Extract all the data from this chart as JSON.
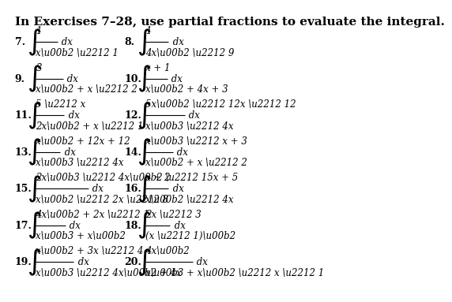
{
  "title": "In Exercises 7–28, use partial fractions to evaluate the integral.",
  "title_fontsize": 11,
  "title_bold": true,
  "exercises": [
    {
      "num": "7.",
      "col": 0,
      "row": 0,
      "numerator": "1",
      "denominator": "x\\u00b2 \\u2212 1",
      "suffix": " dx"
    },
    {
      "num": "8.",
      "col": 1,
      "row": 0,
      "numerator": "1",
      "denominator": "4x\\u00b2 \\u2212 9",
      "suffix": " dx"
    },
    {
      "num": "9.",
      "col": 0,
      "row": 1,
      "numerator": "3",
      "denominator": "x\\u00b2 + x \\u2212 2",
      "suffix": " dx"
    },
    {
      "num": "10.",
      "col": 1,
      "row": 1,
      "numerator": "x + 1",
      "denominator": "x\\u00b2 + 4x + 3",
      "suffix": " dx"
    },
    {
      "num": "11.",
      "col": 0,
      "row": 2,
      "numerator": "5 \\u2212 x",
      "denominator": "2x\\u00b2 + x \\u2212 1",
      "suffix": " dx"
    },
    {
      "num": "12.",
      "col": 1,
      "row": 2,
      "numerator": "5x\\u00b2 \\u2212 12x \\u2212 12",
      "denominator": "x\\u00b3 \\u2212 4x",
      "suffix": " dx"
    },
    {
      "num": "13.",
      "col": 0,
      "row": 3,
      "numerator": "x\\u00b2 + 12x + 12",
      "denominator": "x\\u00b3 \\u2212 4x",
      "suffix": " dx"
    },
    {
      "num": "14.",
      "col": 1,
      "row": 3,
      "numerator": "x\\u00b3 \\u2212 x + 3",
      "denominator": "x\\u00b2 + x \\u2212 2",
      "suffix": " dx"
    },
    {
      "num": "15.",
      "col": 0,
      "row": 4,
      "numerator": "2x\\u00b3 \\u2212 4x\\u00b2 \\u2212 15x + 5",
      "denominator": "x\\u00b2 \\u2212 2x \\u2212 8",
      "suffix": " dx"
    },
    {
      "num": "16.",
      "col": 1,
      "row": 4,
      "numerator": "x + 2",
      "denominator": "x\\u00b2 \\u2212 4x",
      "suffix": " dx"
    },
    {
      "num": "17.",
      "col": 0,
      "row": 5,
      "numerator": "4x\\u00b2 + 2x \\u2212 1",
      "denominator": "x\\u00b3 + x\\u00b2",
      "suffix": " dx"
    },
    {
      "num": "18.",
      "col": 1,
      "row": 5,
      "numerator": "2x \\u2212 3",
      "denominator": "(x \\u2212 1)\\u00b2",
      "suffix": " dx"
    },
    {
      "num": "19.",
      "col": 0,
      "row": 6,
      "numerator": "x\\u00b2 + 3x \\u2212 4",
      "denominator": "x\\u00b3 \\u2212 4x\\u00b2 + 4x",
      "suffix": " dx"
    },
    {
      "num": "20.",
      "col": 1,
      "row": 6,
      "numerator": "4x\\u00b2",
      "denominator": "x\\u00b3 + x\\u00b2 \\u2212 x \\u2212 1",
      "suffix": " dx"
    }
  ],
  "bg_color": "#ffffff",
  "text_color": "#000000",
  "num_rows": 7,
  "num_cols": 2
}
